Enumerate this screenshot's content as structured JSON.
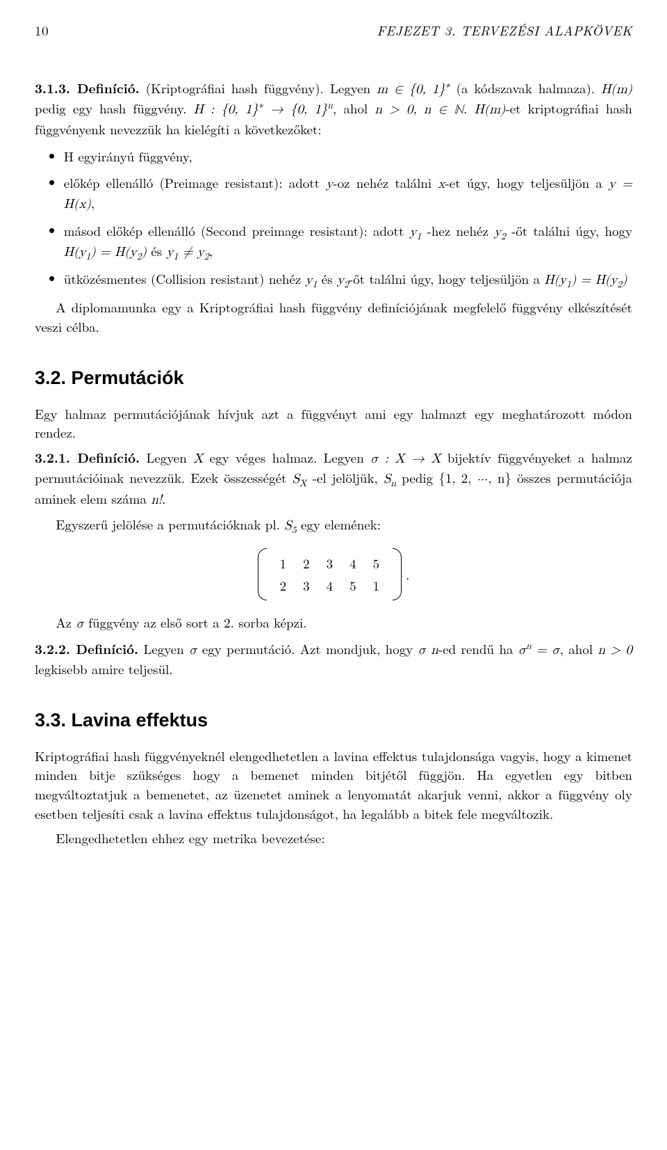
{
  "header": {
    "page_number": "10",
    "running_title": "FEJEZET 3. TERVEZÉSI ALAPKÖVEK"
  },
  "def313": {
    "label": "3.1.3. Definíció.",
    "title": "(Kriptográfiai hash függvény).",
    "sentence_a": "Legyen ",
    "m_in": "m ∈ {0, 1}",
    "star": "∗",
    "sentence_b": " (a kódszavak halmaza). ",
    "hm": "H(m)",
    "sentence_c": " pedig egy hash függvény. ",
    "map": "H : {0, 1}",
    "arrow": " → {0, 1}",
    "n_exp": "n",
    "sentence_d": ", ahol ",
    "n_cond": "n > 0, n ∈ ℕ",
    "sentence_e": ". ",
    "hm2": "H(m)",
    "sentence_f": "-et kriptográfiai hash függvényenk nevezzük ha kielégíti a következőket:"
  },
  "bullets": {
    "b1": "H egyirányú függvény,",
    "b2a": "előkép ellenálló (Preimage resistant): adott ",
    "b2_y": "y",
    "b2b": "-oz nehéz találni ",
    "b2_x": "x",
    "b2c": "-et úgy, hogy teljesüljön a ",
    "b2_eq": "y = H(x)",
    "b2d": ",",
    "b3a": "másod előkép ellenálló (Second preimage resistant): adott ",
    "b3_y1": "y",
    "b3_sub1": "1",
    "b3b": " -hez nehéz ",
    "b3_y2": "y",
    "b3_sub2": "2",
    "b3c": " -őt találni úgy, hogy ",
    "b3_eq1": "H(y",
    "b3_eq1s": "1",
    "b3_eq1b": ") = H(y",
    "b3_eq1s2": "2",
    "b3_eq1c": ")",
    "b3_and": " és ",
    "b3_neq_a": "y",
    "b3_neq_s1": "1",
    "b3_neq_mid": " ≠ y",
    "b3_neq_s2": "2",
    "b3d": ",",
    "b4a": "ütközésmentes (Collision resistant) nehéz ",
    "b4_y1": "y",
    "b4_s1": "1",
    "b4_and": " és ",
    "b4_y2": "y",
    "b4_s2": "2",
    "b4b": "-őt találni úgy, hogy teljesüljön a ",
    "b4_eq_a": "H(y",
    "b4_eq_s1": "1",
    "b4_eq_mid": ") = H(y",
    "b4_eq_s2": "2",
    "b4_eq_c": ")"
  },
  "after_bullets": "A diplomamunka egy a Kriptográfiai hash függvény definíciójának megfelelő függvény elkészítését veszi célba.",
  "sec32": {
    "heading": "3.2. Permutációk",
    "intro": "Egy halmaz permutációjának hívjuk azt a függvényt ami egy halmazt egy meghatározott módon rendez.",
    "def_label": "3.2.1. Definíció.",
    "d1a": " Legyen ",
    "d1_X": "X",
    "d1b": " egy véges halmaz. Legyen ",
    "d1_sigma": "σ : X → X",
    "d1c": " bijektív függvényeket a halmaz permutációinak nevezzük. Ezek összességét ",
    "d1_SX": "S",
    "d1_SX_sub": "X",
    "d1d": " -el jelöljük, ",
    "d1_Sn": "S",
    "d1_Sn_sub": "n",
    "d1e": " pedig ",
    "d1_set": "{1, 2, ···, n}",
    "d1f": " összes permutációja aminek elem száma ",
    "d1_nfact": "n!",
    "d1g": ".",
    "notation_a": "Egyszerű jelölése a permutációknak pl. ",
    "notation_S5": "S",
    "notation_S5_sub": "5",
    "notation_b": " egy elemének:",
    "matrix": {
      "row1": [
        "1",
        "2",
        "3",
        "4",
        "5"
      ],
      "row2": [
        "2",
        "3",
        "4",
        "5",
        "1"
      ]
    },
    "matrix_period": ".",
    "sigma_sentence_a": "Az ",
    "sigma_sentence_sigma": "σ",
    "sigma_sentence_b": " függvény az első sort a 2. sorba képzi.",
    "def2_label": "3.2.2. Definíció.",
    "d2a": " Legyen ",
    "d2_sigma": "σ",
    "d2b": " egy permutáció. Azt mondjuk, hogy ",
    "d2_sigma2": "σ n",
    "d2c": "-ed rendű ha ",
    "d2_eq_a": "σ",
    "d2_eq_sup": "n",
    "d2_eq_b": " = σ",
    "d2d": ", ahol ",
    "d2_ncond": "n > 0",
    "d2e": " legkisebb amire teljesül."
  },
  "sec33": {
    "heading": "3.3. Lavina effektus",
    "p1": "Kriptográfiai hash függvényeknél elengedhetetlen a lavina effektus tulajdonsága vagyis, hogy a kimenet minden bitje szükséges hogy a bemenet minden bitjétől függjön. Ha egyetlen egy bitben megváltoztatjuk a bemenetet, az üzenetet aminek a lenyomatát akarjuk venni, akkor a függvény oly esetben teljesíti csak a lavina effektus tulajdonságot, ha legalább a bitek fele megváltozik.",
    "p2": "Elengedhetetlen ehhez egy metrika bevezetése:"
  }
}
